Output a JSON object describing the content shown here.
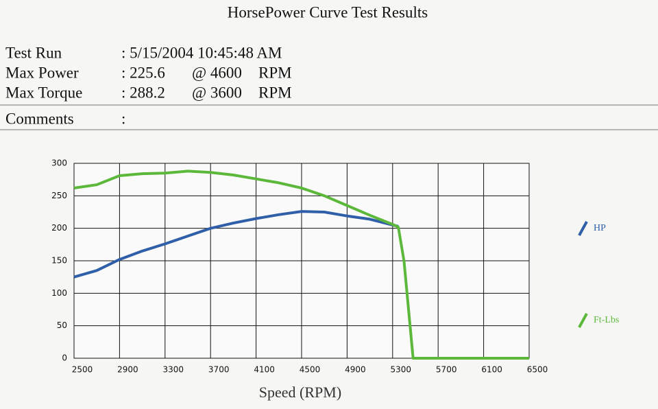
{
  "header": {
    "title": "HorsePower Curve Test Results",
    "rows": [
      {
        "label": "Test Run",
        "value": ": 5/15/2004 10:45:48 AM"
      },
      {
        "label": "Max Power",
        "value": ": 225.6",
        "at": "@ 4600",
        "unit": "RPM"
      },
      {
        "label": "Max Torque",
        "value": ": 288.2",
        "at": "@ 3600",
        "unit": "RPM"
      }
    ],
    "comments": {
      "label": "Comments",
      "value": ":"
    }
  },
  "chart_data": {
    "type": "line",
    "x_label": "Speed (RPM)",
    "x": [
      2500,
      2700,
      2900,
      3100,
      3300,
      3500,
      3700,
      3900,
      4100,
      4300,
      4500,
      4700,
      4900,
      5100,
      5300,
      5350,
      5400,
      5480,
      6500
    ],
    "series": [
      {
        "name": "HP",
        "color": "#2f5fa8",
        "values": [
          125,
          135,
          152,
          165,
          176,
          188,
          200,
          208,
          215,
          221,
          226,
          225,
          219,
          214,
          205,
          203,
          null,
          null,
          null
        ]
      },
      {
        "name": "Ft-Lbs",
        "color": "#5cb83a",
        "values": [
          262,
          267,
          281,
          284,
          285,
          288,
          286,
          282,
          276,
          270,
          262,
          250,
          235,
          220,
          206,
          202,
          150,
          0,
          0
        ]
      }
    ],
    "xlim": [
      2500,
      6500
    ],
    "xticks": [
      2500,
      2900,
      3300,
      3700,
      4100,
      4500,
      4900,
      5300,
      5700,
      6100,
      6500
    ],
    "ylim": [
      0,
      300
    ],
    "yticks": [
      0,
      50,
      100,
      150,
      200,
      250,
      300
    ],
    "grid": true,
    "legend": "right"
  }
}
